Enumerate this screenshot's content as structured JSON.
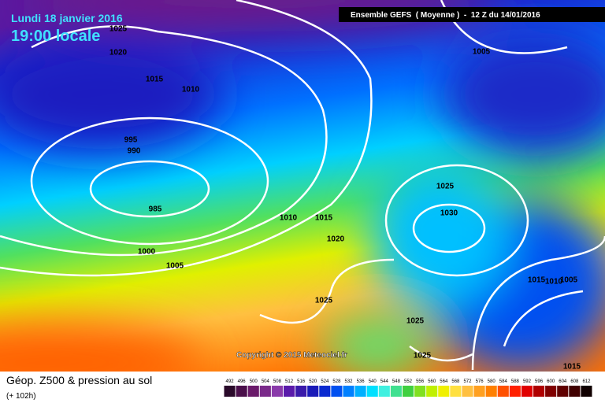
{
  "header": {
    "date": "Lundi 18 janvier 2016",
    "time": "19:00 locale",
    "run": "Ensemble GEFS  ( Moyenne )  -  12 Z du 14/01/2016"
  },
  "copyright": "Copyright © 2015 Meteociel.fr",
  "footer": {
    "title": "Géop. Z500 & pression au sol",
    "lead": "(+ 102h)"
  },
  "isobar_labels": [
    "1025",
    "1020",
    "1015",
    "1010",
    "1005",
    "995",
    "990",
    "985",
    "1010",
    "1015",
    "1020",
    "1025",
    "1030",
    "1000",
    "1005",
    "1015",
    "1010",
    "1005",
    "1025",
    "1025",
    "1025",
    "1015"
  ],
  "legend": {
    "labels": [
      492,
      496,
      500,
      504,
      508,
      512,
      516,
      520,
      524,
      528,
      532,
      536,
      540,
      544,
      548,
      552,
      556,
      560,
      564,
      568,
      572,
      576,
      580,
      584,
      588,
      592,
      596,
      600,
      604,
      608,
      612
    ],
    "colors": [
      "#2a0a2a",
      "#4a0f4a",
      "#6a1a6a",
      "#7a2a8a",
      "#8a3aaa",
      "#5a1aaa",
      "#3a1aaa",
      "#1a1ab8",
      "#0a2ad0",
      "#0050f0",
      "#0080ff",
      "#00b0ff",
      "#00e0ff",
      "#40f0e0",
      "#40e090",
      "#40d040",
      "#80e020",
      "#c0f000",
      "#f0f000",
      "#ffe040",
      "#ffc040",
      "#ffa020",
      "#ff8000",
      "#ff5000",
      "#ff2000",
      "#e00000",
      "#b00000",
      "#800000",
      "#600000",
      "#400000",
      "#100000"
    ]
  }
}
